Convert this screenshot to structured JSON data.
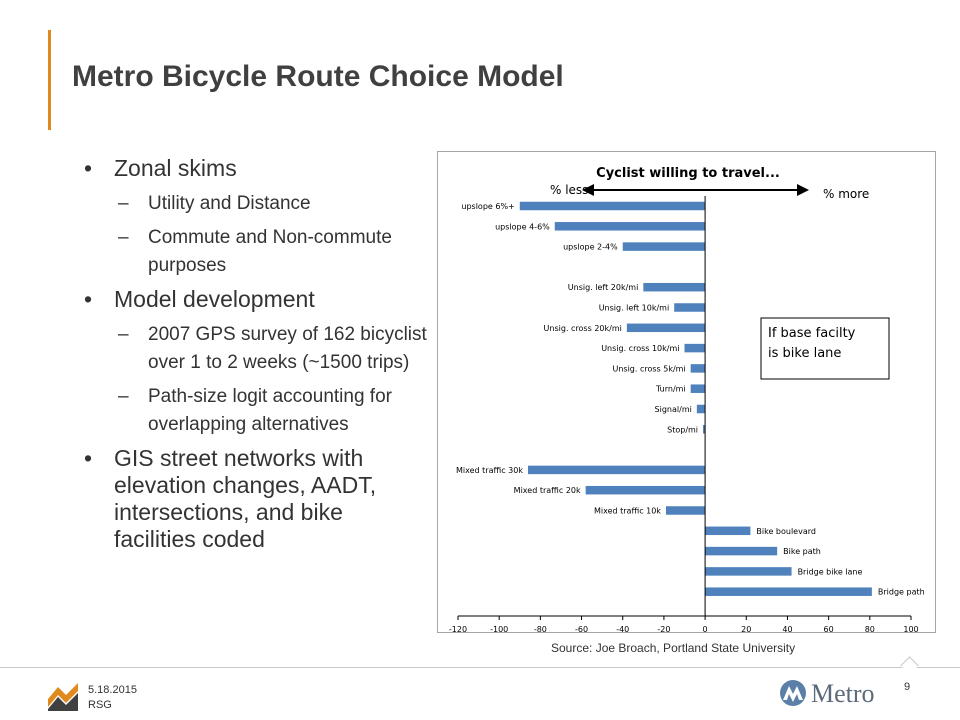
{
  "slide": {
    "title": "Metro Bicycle Route Choice Model",
    "source": "Source: Joe Broach, Portland State University",
    "footer_date": "5.18.2015",
    "footer_company": "RSG",
    "page_number": "9",
    "metro_logo_text": "Metro",
    "accent_color": "#e08a1e"
  },
  "bullets": [
    {
      "text": "Zonal skims",
      "subs": [
        "Utility and Distance",
        "Commute and Non-commute purposes"
      ]
    },
    {
      "text": "Model development",
      "subs": [
        "2007 GPS survey of 162 bicyclist over 1 to 2 weeks (~1500 trips)",
        "Path-size logit accounting for overlapping alternatives"
      ]
    },
    {
      "text": "GIS street networks with elevation changes, AADT, intersections, and bike facilities coded",
      "subs": []
    }
  ],
  "chart_data": {
    "type": "bar",
    "orientation": "horizontal",
    "title": "Cyclist willing to travel...",
    "arrow_left_label": "% less",
    "arrow_right_label": "% more",
    "annotation": "If base facilty is bike lane",
    "xlim": [
      -120,
      100
    ],
    "xticks": [
      -120,
      -100,
      -80,
      -60,
      -40,
      -20,
      0,
      20,
      40,
      60,
      80,
      100
    ],
    "grid": false,
    "bar_color": "#4f81bd",
    "categories": [
      "upslope 6%+",
      "upslope 4-6%",
      "upslope 2-4%",
      "",
      "Unsig. left 20k/mi",
      "Unsig. left 10k/mi",
      "Unsig. cross 20k/mi",
      "Unsig. cross 10k/mi",
      "Unsig. cross 5k/mi",
      "Turn/mi",
      "Signal/mi",
      "Stop/mi",
      "",
      "Mixed traffic 30k",
      "Mixed traffic 20k",
      "Mixed traffic 10k",
      "Bike boulevard",
      "Bike path",
      "Bridge bike lane",
      "Bridge path"
    ],
    "values": [
      -90,
      -73,
      -40,
      null,
      -30,
      -15,
      -38,
      -10,
      -7,
      -7,
      -4,
      -1,
      null,
      -86,
      -58,
      -19,
      22,
      35,
      42,
      81
    ]
  }
}
